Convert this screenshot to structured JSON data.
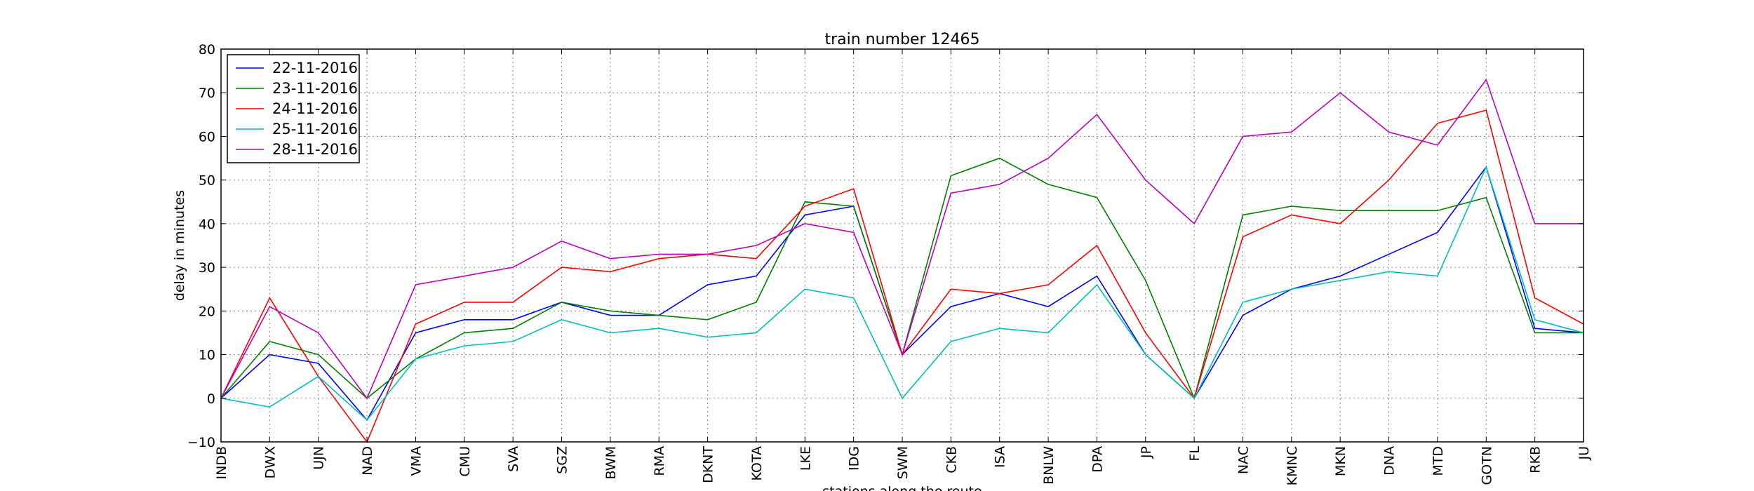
{
  "chart_data": {
    "type": "line",
    "title": "train number 12465",
    "xlabel": "stations along the route",
    "ylabel": "delay in minutes",
    "ylim": [
      -10,
      80
    ],
    "yticks": [
      -10,
      0,
      10,
      20,
      30,
      40,
      50,
      60,
      70,
      80
    ],
    "grid": true,
    "legend_position": "top-left",
    "categories": [
      "INDB",
      "DWX",
      "UJN",
      "NAD",
      "VMA",
      "CMU",
      "SVA",
      "SGZ",
      "BWM",
      "RMA",
      "DKNT",
      "KOTA",
      "LKE",
      "IDG",
      "SWM",
      "CKB",
      "ISA",
      "BNLW",
      "DPA",
      "JP",
      "FL",
      "NAC",
      "KMNC",
      "MKN",
      "DNA",
      "MTD",
      "GOTN",
      "RKB",
      "JU"
    ],
    "series": [
      {
        "name": "22-11-2016",
        "color": "#0000ff",
        "values": [
          0,
          10,
          8,
          -5,
          15,
          18,
          18,
          22,
          19,
          19,
          26,
          28,
          42,
          44,
          10,
          21,
          24,
          21,
          28,
          10,
          0,
          19,
          25,
          28,
          33,
          38,
          53,
          16,
          15
        ]
      },
      {
        "name": "23-11-2016",
        "color": "#008000",
        "values": [
          0,
          13,
          10,
          0,
          9,
          15,
          16,
          22,
          20,
          19,
          18,
          22,
          45,
          44,
          10,
          51,
          55,
          49,
          46,
          27,
          0,
          42,
          44,
          43,
          43,
          43,
          46,
          15,
          15
        ]
      },
      {
        "name": "24-11-2016",
        "color": "#ff0000",
        "values": [
          0,
          23,
          5,
          -10,
          17,
          22,
          22,
          30,
          29,
          32,
          33,
          32,
          44,
          48,
          10,
          25,
          24,
          26,
          35,
          15,
          0,
          37,
          42,
          40,
          50,
          63,
          66,
          23,
          17
        ]
      },
      {
        "name": "25-11-2016",
        "color": "#00bfbf",
        "values": [
          0,
          -2,
          5,
          -5,
          9,
          12,
          13,
          18,
          15,
          16,
          14,
          15,
          25,
          23,
          0,
          13,
          16,
          15,
          26,
          10,
          0,
          22,
          25,
          27,
          29,
          28,
          53,
          18,
          15
        ]
      },
      {
        "name": "28-11-2016",
        "color": "#bf00bf",
        "values": [
          0,
          21,
          15,
          0,
          26,
          28,
          30,
          36,
          32,
          33,
          33,
          35,
          40,
          38,
          10,
          47,
          49,
          55,
          65,
          50,
          40,
          60,
          61,
          70,
          61,
          58,
          73,
          40,
          40
        ]
      }
    ]
  }
}
